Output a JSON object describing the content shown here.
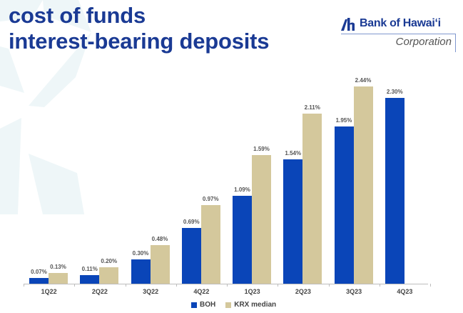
{
  "header": {
    "title_line1": "cost of funds",
    "title_line2": "interest-bearing deposits"
  },
  "logo": {
    "name": "Bank of Hawaiʻi",
    "subtitle": "Corporation",
    "icon": "bank-of-hawaii-mark-icon"
  },
  "colors": {
    "title": "#1a3a94",
    "boh": "#0a45b8",
    "krx": "#d4c89c",
    "background_star": "#eef6f8"
  },
  "legend": {
    "items": [
      {
        "label": "BOH",
        "color": "#0a45b8"
      },
      {
        "label": "KRX median",
        "color": "#d4c89c"
      }
    ]
  },
  "chart_data": {
    "type": "bar",
    "title": "cost of funds interest-bearing deposits",
    "xlabel": "",
    "ylabel": "",
    "grid": false,
    "legend_position": "bottom",
    "ylim": [
      0,
      2.6
    ],
    "categories": [
      "1Q22",
      "2Q22",
      "3Q22",
      "4Q22",
      "1Q23",
      "2Q23",
      "3Q23",
      "4Q23"
    ],
    "series": [
      {
        "name": "BOH",
        "values": [
          0.07,
          0.11,
          0.3,
          0.69,
          1.09,
          1.54,
          1.95,
          2.3
        ],
        "labels": [
          "0.07%",
          "0.11%",
          "0.30%",
          "0.69%",
          "1.09%",
          "1.54%",
          "1.95%",
          "2.30%"
        ]
      },
      {
        "name": "KRX median",
        "values": [
          0.13,
          0.2,
          0.48,
          0.97,
          1.59,
          2.11,
          2.44,
          null
        ],
        "labels": [
          "0.13%",
          "0.20%",
          "0.48%",
          "0.97%",
          "1.59%",
          "2.11%",
          "2.44%",
          ""
        ]
      }
    ]
  }
}
